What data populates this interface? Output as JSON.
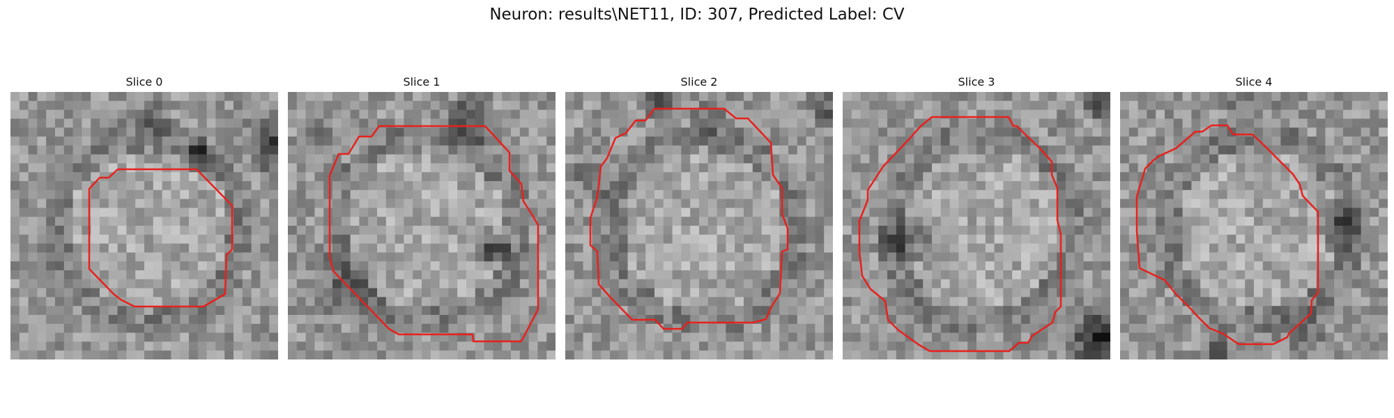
{
  "figure": {
    "title": "Neuron: results\\NET11, ID: 307, Predicted Label: CV",
    "contour_color": "#e8201c"
  },
  "panels": [
    {
      "title": "Slice 0"
    },
    {
      "title": "Slice 1"
    },
    {
      "title": "Slice 2"
    },
    {
      "title": "Slice 3"
    },
    {
      "title": "Slice 4"
    }
  ]
}
